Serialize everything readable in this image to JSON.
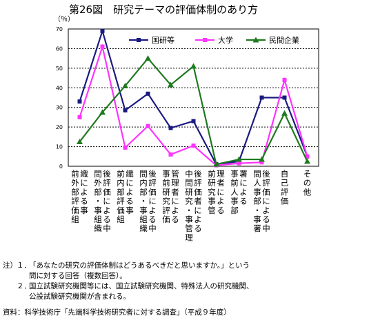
{
  "title": "第26図　研究テーマの評価体制のあり方",
  "chart_data": {
    "type": "line",
    "title": "第26図　研究テーマの評価体制のあり方",
    "ylabel": "（％）",
    "ylim": [
      0,
      70
    ],
    "yticks": [
      0,
      10,
      20,
      30,
      40,
      50,
      60,
      70
    ],
    "grid": true,
    "legend": "top",
    "categories": [
      "前外部評価組織による事",
      "間外部・事組織後評価による中",
      "前内部評価組織による事",
      "間内部・事組織後評価による中",
      "事前研究評価管理者による",
      "中間研究・事管理後評価者による",
      "前研究事管理者による",
      "事前人事部署による",
      "間人事部・事署後評価による中",
      "自己評価",
      "その他"
    ],
    "series": [
      {
        "name": "国研等",
        "color": "#1a1a80",
        "marker": "square",
        "values": [
          33,
          69,
          28.5,
          37,
          19.5,
          23,
          1,
          2.5,
          35,
          35,
          5
        ]
      },
      {
        "name": "大学",
        "color": "#ff33ff",
        "marker": "square",
        "values": [
          25,
          61,
          9.5,
          20.5,
          6,
          10.5,
          0.5,
          1.5,
          2,
          44,
          5
        ]
      },
      {
        "name": "民間企業",
        "color": "#1e7a1e",
        "marker": "triangle",
        "values": [
          12.5,
          27.5,
          41,
          55,
          41.5,
          51,
          1,
          3.5,
          3.5,
          27,
          2.5
        ]
      }
    ]
  },
  "notes": {
    "label": "注）",
    "items": [
      {
        "num": "１．",
        "lines": [
          "「あなたの研究の評価体制はどうあるべきだと思いますか。」という",
          "問に対する回答（複数回答）。"
        ]
      },
      {
        "num": "２．",
        "lines": [
          "国立試験研究機関等には、国立試験研究機関、特殊法人の研究機関、",
          "公設試験研究機関が含まれる。"
        ]
      }
    ]
  },
  "source": "資料：科学技術庁「先端科学技術研究者に対する調査」（平成９年度）"
}
